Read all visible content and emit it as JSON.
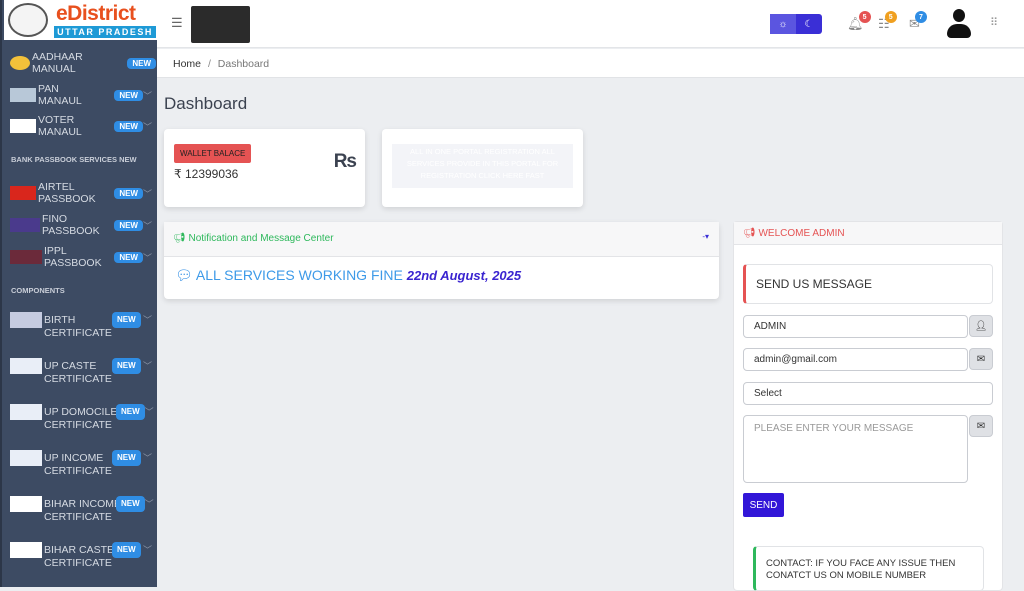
{
  "brand": {
    "name": "eDistrict",
    "sub": "UTTAR PRADESH"
  },
  "sidebar": {
    "badge": "NEW",
    "top_items": [
      {
        "label": "AADHAAR MANUAL"
      },
      {
        "label": "PAN MANAUL"
      },
      {
        "label": "VOTER MANAUL"
      }
    ],
    "section1": "BANK PASSBOOK SERVICES NEW",
    "bank_items": [
      {
        "label": "AIRTEL PASSBOOK"
      },
      {
        "label": "FINO PASSBOOK"
      },
      {
        "label": "IPPL PASSBOOK"
      }
    ],
    "section2": "COMPONENTS",
    "components": [
      {
        "l1": "BIRTH",
        "l2": "CERTIFICATE"
      },
      {
        "l1": "UP CASTE",
        "l2": "CERTIFICATE"
      },
      {
        "l1": "UP DOMOCILE",
        "l2": "CERTIFICATE"
      },
      {
        "l1": "UP INCOME",
        "l2": "CERTIFICATE"
      },
      {
        "l1": "BIHAR INCOME",
        "l2": "CERTIFICATE"
      },
      {
        "l1": "BIHAR CASTE",
        "l2": "CERTIFICATE"
      }
    ]
  },
  "header": {
    "notifications": "5",
    "tasks": "5",
    "messages": "7"
  },
  "breadcrumb": {
    "home": "Home",
    "sep": "/",
    "current": "Dashboard"
  },
  "page_title": "Dashboard",
  "wallet": {
    "label": "WALLET BALACE",
    "amount": "₹ 12399036",
    "currency": "Rs"
  },
  "promo": "ALL IN ONE PORTAL REGISTRATION ALL SERVICES PROVIDE IN THIS PORTAL FOR REGISTRATION CLICK HERE FAST",
  "notification": {
    "title": "Notification and Message Center",
    "message": "ALL SERVICES WORKING FINE",
    "date": "22nd August, 2025"
  },
  "welcome": {
    "title": "WELCOME ADMIN",
    "form_title": "SEND US MESSAGE",
    "name": "ADMIN",
    "email": "admin@gmail.com",
    "select": "Select",
    "message_placeholder": "PLEASE ENTER YOUR MESSAGE",
    "send": "SEND",
    "contact": "CONTACT: IF YOU FACE ANY ISSUE THEN CONATCT US ON MOBILE NUMBER"
  },
  "colors": {
    "sidebar": "#3d4b63",
    "accent": "#3216d8",
    "badge": "#2f8de4",
    "danger": "#e55353",
    "success": "#2eb85c"
  }
}
